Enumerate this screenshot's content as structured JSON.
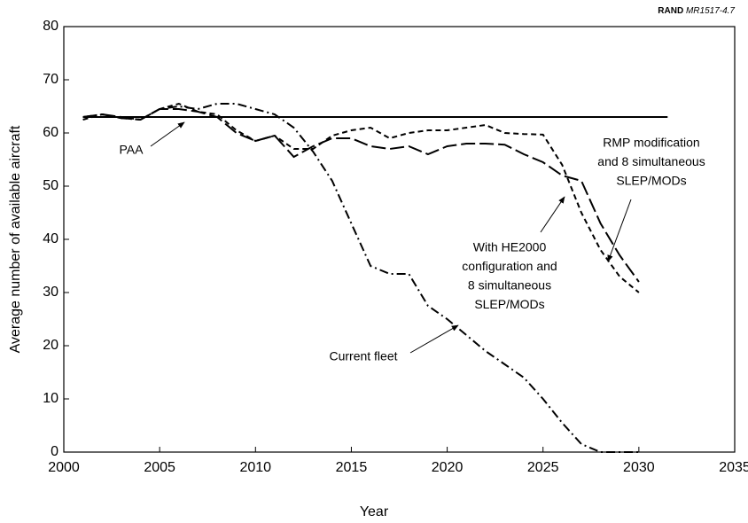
{
  "chart_data": {
    "type": "line",
    "source_org": "RAND",
    "source_id": "MR1517-4.7",
    "xlabel": "Year",
    "ylabel": "Average number of available aircraft",
    "xlim": [
      2000,
      2035
    ],
    "xticks": [
      2000,
      2005,
      2010,
      2015,
      2020,
      2025,
      2030,
      2035
    ],
    "ylim": [
      0,
      80
    ],
    "yticks": [
      0,
      10,
      20,
      30,
      40,
      50,
      60,
      70,
      80
    ],
    "grid": false,
    "series": [
      {
        "name": "PAA",
        "color": "#000000",
        "dash": "none",
        "x": [
          2001,
          2031.5
        ],
        "values": [
          63,
          63
        ]
      },
      {
        "name": "Current fleet",
        "color": "#000000",
        "dash": "10 4 2 4",
        "x": [
          2001,
          2002,
          2003,
          2004,
          2005,
          2006,
          2007,
          2008,
          2009,
          2010,
          2011,
          2012,
          2013,
          2014,
          2015,
          2016,
          2017,
          2018,
          2019,
          2020,
          2021,
          2022,
          2023,
          2024,
          2025,
          2026,
          2027,
          2028,
          2029,
          2030
        ],
        "values": [
          63,
          63.5,
          62.8,
          62.5,
          64.5,
          65,
          64.5,
          65.5,
          65.5,
          64.5,
          63.5,
          61,
          56.5,
          51,
          43,
          35,
          33.5,
          33.5,
          27.5,
          25,
          22,
          19,
          16.5,
          14,
          10,
          5.5,
          1.5,
          0,
          0,
          0
        ]
      },
      {
        "name": "With HE2000 configuration and 8 simultaneous SLEP/MODs",
        "color": "#000000",
        "dash": "6 4",
        "x": [
          2001,
          2002,
          2003,
          2004,
          2005,
          2006,
          2007,
          2008,
          2009,
          2010,
          2011,
          2012,
          2013,
          2014,
          2015,
          2016,
          2017,
          2018,
          2019,
          2020,
          2021,
          2022,
          2023,
          2024,
          2025,
          2026,
          2027,
          2028,
          2029,
          2030
        ],
        "values": [
          62.5,
          63.5,
          62.8,
          62.5,
          64.5,
          65.5,
          64,
          63.5,
          60.5,
          58.5,
          59.5,
          57,
          57,
          59.5,
          60.5,
          61,
          59,
          60,
          60.5,
          60.5,
          61,
          61.5,
          60,
          59.8,
          59.7,
          54,
          45,
          38,
          33,
          30
        ]
      },
      {
        "name": "RMP modification and 8 simultaneous SLEP/MODs",
        "color": "#000000",
        "dash": "16 5",
        "x": [
          2001,
          2002,
          2003,
          2004,
          2005,
          2006,
          2007,
          2008,
          2009,
          2010,
          2011,
          2012,
          2013,
          2014,
          2015,
          2016,
          2017,
          2018,
          2019,
          2020,
          2021,
          2022,
          2023,
          2024,
          2025,
          2026,
          2027,
          2028,
          2029,
          2030
        ],
        "values": [
          63,
          63.5,
          63,
          62.5,
          64.5,
          64.5,
          64,
          63,
          60,
          58.5,
          59.5,
          55.5,
          57.5,
          59,
          59,
          57.5,
          57,
          57.5,
          56,
          57.5,
          58,
          58,
          57.8,
          56,
          54.5,
          52,
          51,
          43,
          37,
          32
        ]
      }
    ],
    "annotations": [
      {
        "lines": [
          "PAA"
        ]
      },
      {
        "lines": [
          "Current fleet"
        ]
      },
      {
        "lines": [
          "With HE2000",
          "configuration and",
          "8 simultaneous",
          "SLEP/MODs"
        ]
      },
      {
        "lines": [
          "RMP modification",
          "and 8 simultaneous",
          "SLEP/MODs"
        ]
      }
    ]
  }
}
